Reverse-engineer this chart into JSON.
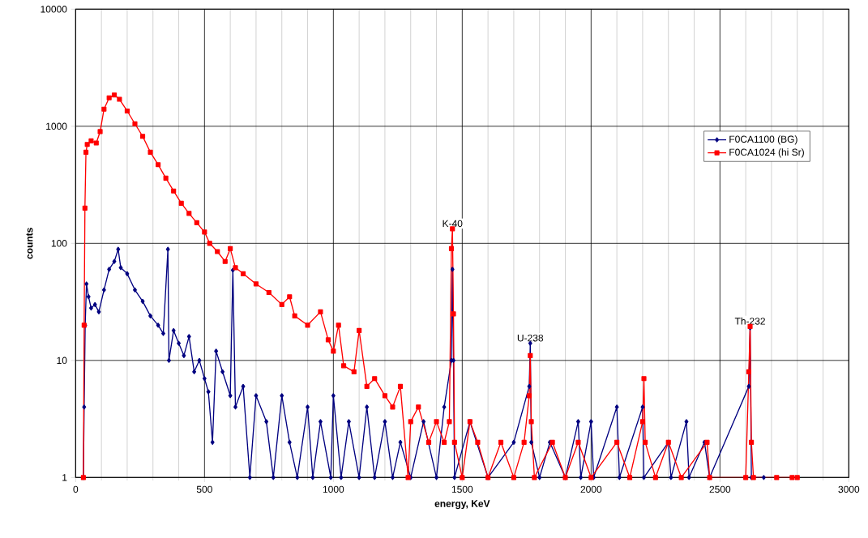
{
  "chart_data": {
    "type": "line",
    "xlabel": "energy, KeV",
    "ylabel": "counts",
    "log": "y",
    "xlim": [
      0,
      3000
    ],
    "xticks": [
      0,
      500,
      1000,
      1500,
      2000,
      2500,
      3000
    ],
    "ylim": [
      1,
      10000
    ],
    "yticks": [
      1,
      10,
      100,
      1000,
      10000
    ],
    "grid": true,
    "legend": "top right",
    "series": [
      {
        "name": "F0CA1100 (BG)",
        "color": "#000080",
        "marker": "diamond",
        "x": [
          30,
          33,
          37,
          42,
          50,
          60,
          75,
          90,
          110,
          130,
          150,
          165,
          175,
          200,
          230,
          260,
          290,
          320,
          340,
          358,
          362,
          380,
          400,
          420,
          440,
          460,
          480,
          500,
          515,
          531,
          545,
          570,
          600,
          610,
          620,
          650,
          676,
          700,
          740,
          767,
          800,
          830,
          860,
          900,
          920,
          950,
          990,
          1000,
          1030,
          1060,
          1100,
          1130,
          1160,
          1200,
          1230,
          1260,
          1300,
          1350,
          1400,
          1430,
          1458,
          1462,
          1466,
          1470,
          1530,
          1600,
          1700,
          1760,
          1764,
          1768,
          1800,
          1840,
          1900,
          1950,
          1960,
          2000,
          2010,
          2100,
          2110,
          2200,
          2205,
          2300,
          2310,
          2370,
          2380,
          2440,
          2460,
          2612,
          2617,
          2622,
          2670
        ],
        "values": [
          1,
          4,
          20,
          45,
          35,
          28,
          30,
          26,
          40,
          60,
          70,
          89,
          62,
          55,
          40,
          32,
          24,
          20,
          17,
          89,
          10,
          18,
          14,
          11,
          16,
          8,
          10,
          7,
          5.4,
          2,
          12,
          8,
          5,
          59,
          4,
          6,
          1,
          5,
          3,
          1,
          5,
          2,
          1,
          4,
          1,
          3,
          1,
          5,
          1,
          3,
          1,
          4,
          1,
          3,
          1,
          2,
          1,
          3,
          1,
          4,
          10,
          60,
          10,
          1,
          3,
          1,
          2,
          6,
          14,
          2,
          1,
          2,
          1,
          3,
          1,
          3,
          1,
          4,
          1,
          4,
          1,
          2,
          1,
          3,
          1,
          2,
          1,
          6,
          19,
          1,
          1
        ]
      },
      {
        "name": "F0CA1024 (hi Sr)",
        "color": "#ff0000",
        "marker": "square",
        "x": [
          30,
          33,
          36,
          40,
          45,
          60,
          80,
          95,
          110,
          130,
          150,
          170,
          200,
          230,
          260,
          290,
          320,
          350,
          380,
          410,
          440,
          470,
          500,
          520,
          550,
          580,
          600,
          620,
          650,
          700,
          750,
          800,
          830,
          850,
          900,
          950,
          980,
          1000,
          1020,
          1040,
          1080,
          1100,
          1130,
          1160,
          1200,
          1230,
          1260,
          1290,
          1300,
          1330,
          1370,
          1400,
          1430,
          1450,
          1458,
          1462,
          1466,
          1470,
          1500,
          1530,
          1560,
          1600,
          1650,
          1700,
          1740,
          1760,
          1764,
          1768,
          1780,
          1850,
          1900,
          1950,
          2000,
          2100,
          2150,
          2200,
          2205,
          2210,
          2250,
          2300,
          2350,
          2450,
          2460,
          2600,
          2612,
          2617,
          2622,
          2630,
          2720,
          2780,
          2800
        ],
        "values": [
          1,
          20,
          200,
          600,
          700,
          750,
          720,
          900,
          1400,
          1750,
          1850,
          1700,
          1350,
          1050,
          820,
          600,
          470,
          360,
          280,
          220,
          180,
          150,
          125,
          100,
          85,
          70,
          90,
          62,
          55,
          45,
          38,
          30,
          35,
          24,
          20,
          26,
          15,
          12,
          20,
          9,
          8,
          18,
          6,
          7,
          5,
          4,
          6,
          1,
          3,
          4,
          2,
          3,
          2,
          3,
          90,
          133,
          25,
          2,
          1,
          3,
          2,
          1,
          2,
          1,
          2,
          5,
          11,
          3,
          1,
          2,
          1,
          2,
          1,
          2,
          1,
          3,
          7,
          2,
          1,
          2,
          1,
          2,
          1,
          1,
          8,
          19.5,
          2,
          1,
          1,
          1,
          1
        ]
      }
    ],
    "annotations": [
      {
        "text": "K-40",
        "x": 1462,
        "y": 133
      },
      {
        "text": "U-238",
        "x": 1764,
        "y": 14
      },
      {
        "text": "Th-232",
        "x": 2617,
        "y": 19.5
      }
    ]
  }
}
